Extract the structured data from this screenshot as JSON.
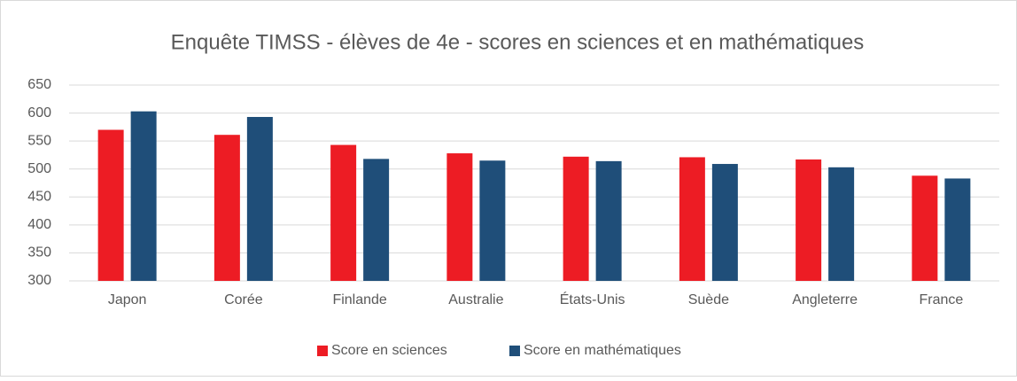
{
  "chart_data": {
    "type": "bar",
    "title": "Enquête TIMSS - élèves de 4e - scores en sciences et en mathématiques",
    "categories": [
      "Japon",
      "Corée",
      "Finlande",
      "Australie",
      "États-Unis",
      "Suède",
      "Angleterre",
      "France"
    ],
    "series": [
      {
        "name": "Score en sciences",
        "color": "#ed1c24",
        "values": [
          570,
          561,
          543,
          528,
          522,
          521,
          517,
          488
        ]
      },
      {
        "name": "Score en mathématiques",
        "color": "#1f4e79",
        "values": [
          603,
          593,
          518,
          515,
          514,
          509,
          503,
          483
        ]
      }
    ],
    "ylim": [
      300,
      650
    ],
    "yticks": [
      300,
      350,
      400,
      450,
      500,
      550,
      600,
      650
    ],
    "grid": true,
    "legend": "bottom"
  }
}
